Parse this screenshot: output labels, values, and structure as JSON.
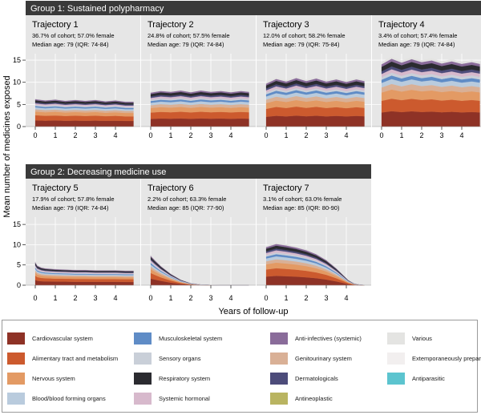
{
  "figure": {
    "ylabel": "Mean number of medicines exposed",
    "xlabel": "Years of follow-up"
  },
  "groups": [
    {
      "title": "Group 1: Sustained polypharmacy"
    },
    {
      "title": "Group 2: Decreasing medicine use"
    }
  ],
  "categories": [
    {
      "name": "Cardiovascular system",
      "color": "#8e3226"
    },
    {
      "name": "Alimentary tract and metabolism",
      "color": "#cc5a2e"
    },
    {
      "name": "Nervous system",
      "color": "#e39a64"
    },
    {
      "name": "Blood/blood forming organs",
      "color": "#b9cbdd"
    },
    {
      "name": "Musculoskeletal system",
      "color": "#5f8cc6"
    },
    {
      "name": "Sensory organs",
      "color": "#c9cfd8"
    },
    {
      "name": "Respiratory system",
      "color": "#2b2b30"
    },
    {
      "name": "Systemic hormonal",
      "color": "#d7b9cc"
    },
    {
      "name": "Anti-infectives (systemic)",
      "color": "#8a6c9a"
    },
    {
      "name": "Genitourinary system",
      "color": "#d9b096"
    },
    {
      "name": "Dermatologicals",
      "color": "#4d4c7a"
    },
    {
      "name": "Antineoplastic",
      "color": "#b9b461"
    },
    {
      "name": "Various",
      "color": "#e4e4e2"
    },
    {
      "name": "Extemporaneously prepared",
      "color": "#f2efef"
    },
    {
      "name": "Antiparasitic",
      "color": "#5cc4cf"
    }
  ],
  "chart_data": [
    {
      "type": "area",
      "title": "Trajectory 1",
      "group": "Group 1: Sustained polypharmacy",
      "subtitle_1": "36.7% of cohort; 57.0% female",
      "subtitle_2": "Median age: 79 (IQR: 74-84)",
      "x": [
        0,
        0.5,
        1,
        1.5,
        2,
        2.5,
        3,
        3.5,
        4,
        4.5,
        4.9
      ],
      "totals": [
        6.4,
        6.1,
        6.3,
        6.0,
        6.2,
        6.0,
        6.2,
        5.9,
        6.1,
        5.8,
        5.8
      ],
      "ylim": [
        0,
        17
      ],
      "xlim": [
        0,
        5
      ],
      "xticks": [
        0,
        1,
        2,
        3,
        4
      ],
      "yticks": [
        0,
        5,
        10,
        15
      ]
    },
    {
      "type": "area",
      "title": "Trajectory 2",
      "group": "Group 1: Sustained polypharmacy",
      "subtitle_1": "24.8% of cohort; 57.5% female",
      "subtitle_2": "Median age: 79 (IQR: 74-84)",
      "x": [
        0,
        0.5,
        1,
        1.5,
        2,
        2.5,
        3,
        3.5,
        4,
        4.5,
        4.9
      ],
      "totals": [
        7.9,
        8.3,
        8.1,
        8.4,
        8.0,
        8.4,
        8.1,
        8.3,
        8.0,
        8.3,
        8.1
      ],
      "ylim": [
        0,
        17
      ],
      "xlim": [
        0,
        5
      ],
      "xticks": [
        0,
        1,
        2,
        3,
        4
      ],
      "yticks": [
        0,
        5,
        10,
        15
      ]
    },
    {
      "type": "area",
      "title": "Trajectory 3",
      "group": "Group 1: Sustained polypharmacy",
      "subtitle_1": "12.0% of cohort; 58.2% female",
      "subtitle_2": "Median age: 79 (IQR: 75-84)",
      "x": [
        0,
        0.5,
        1,
        1.5,
        2,
        2.5,
        3,
        3.5,
        4,
        4.5,
        4.9
      ],
      "totals": [
        10.0,
        11.1,
        10.5,
        11.3,
        10.6,
        11.2,
        10.5,
        11.0,
        10.4,
        11.0,
        10.6
      ],
      "ylim": [
        0,
        17
      ],
      "xlim": [
        0,
        5
      ],
      "xticks": [
        0,
        1,
        2,
        3,
        4
      ],
      "yticks": [
        0,
        5,
        10,
        15
      ]
    },
    {
      "type": "area",
      "title": "Trajectory 4",
      "group": "Group 1: Sustained polypharmacy",
      "subtitle_1": "3.4% of cohort; 57.4% female",
      "subtitle_2": "Median age: 79 (IQR: 74-84)",
      "x": [
        0,
        0.5,
        1,
        1.5,
        2,
        2.5,
        3,
        3.5,
        4,
        4.5,
        4.9
      ],
      "totals": [
        14.5,
        15.8,
        14.9,
        15.7,
        15.0,
        15.4,
        14.7,
        15.2,
        14.6,
        15.0,
        14.6
      ],
      "ylim": [
        0,
        17
      ],
      "xlim": [
        0,
        5
      ],
      "xticks": [
        0,
        1,
        2,
        3,
        4
      ],
      "yticks": [
        0,
        5,
        10,
        15
      ]
    },
    {
      "type": "area",
      "title": "Trajectory 5",
      "group": "Group 2: Decreasing medicine use",
      "subtitle_1": "17.9% of cohort; 57.8% female",
      "subtitle_2": "Median age: 79 (IQR: 74-84)",
      "x": [
        0,
        0.1,
        0.3,
        0.5,
        1,
        1.5,
        2,
        2.5,
        3,
        3.5,
        4,
        4.5,
        4.9
      ],
      "totals": [
        5.9,
        5.0,
        4.5,
        4.3,
        4.1,
        4.0,
        3.9,
        3.9,
        3.8,
        3.8,
        3.8,
        3.7,
        3.7
      ],
      "ylim": [
        0,
        17
      ],
      "xlim": [
        0,
        5
      ],
      "xticks": [
        0,
        1,
        2,
        3,
        4
      ],
      "yticks": [
        0,
        5,
        10,
        15
      ]
    },
    {
      "type": "area",
      "title": "Trajectory 6",
      "group": "Group 2: Decreasing medicine use",
      "subtitle_1": "2.2% of cohort; 63.3% female",
      "subtitle_2": "Median age: 85 (IQR: 77-90)",
      "x": [
        0,
        0.2,
        0.5,
        1,
        1.5,
        2,
        2.5,
        3,
        3.5,
        4,
        4.5,
        4.9
      ],
      "totals": [
        7.5,
        6.4,
        4.9,
        2.9,
        1.4,
        0.5,
        0.15,
        0.05,
        0.0,
        0.0,
        0.0,
        0.0
      ],
      "ylim": [
        0,
        17
      ],
      "xlim": [
        0,
        5
      ],
      "xticks": [
        0,
        1,
        2,
        3,
        4
      ],
      "yticks": [
        0,
        5,
        10,
        15
      ]
    },
    {
      "type": "area",
      "title": "Trajectory 7",
      "group": "Group 2: Decreasing medicine use",
      "subtitle_1": "3.1% of cohort; 63.0% female",
      "subtitle_2": "Median age: 85 (IQR: 80-90)",
      "x": [
        0,
        0.5,
        1,
        1.5,
        2,
        2.5,
        3,
        3.5,
        3.8,
        4.1,
        4.4,
        4.7,
        4.9
      ],
      "totals": [
        9.7,
        10.5,
        10.1,
        9.6,
        8.9,
        7.9,
        6.4,
        4.3,
        2.8,
        1.3,
        0.4,
        0.1,
        0.05
      ],
      "ylim": [
        0,
        17
      ],
      "xlim": [
        0,
        5
      ],
      "xticks": [
        0,
        1,
        2,
        3,
        4
      ],
      "yticks": [
        0,
        5,
        10,
        15
      ]
    }
  ],
  "stack_shares": {
    "order": [
      "Cardiovascular system",
      "Alimentary tract and metabolism",
      "Nervous system",
      "Genitourinary system",
      "Blood/blood forming organs",
      "Musculoskeletal system",
      "Sensory organs",
      "Systemic hormonal",
      "Dermatologicals",
      "Respiratory system",
      "Anti-infectives (systemic)",
      "Various"
    ],
    "shares": [
      0.22,
      0.18,
      0.13,
      0.08,
      0.07,
      0.05,
      0.04,
      0.05,
      0.04,
      0.07,
      0.04,
      0.03
    ]
  }
}
